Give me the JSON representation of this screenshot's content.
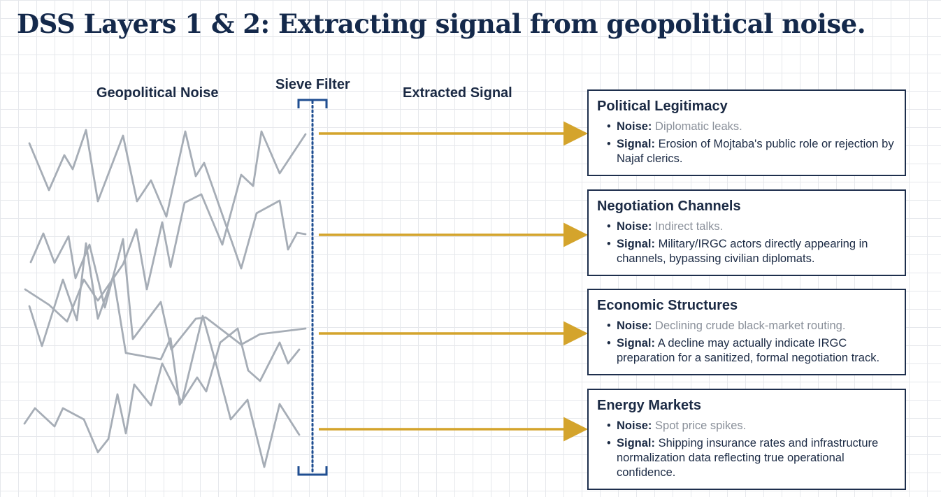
{
  "title": "DSS Layers 1 & 2: Extracting signal from geopolitical noise.",
  "labels": {
    "noise": "Geopolitical Noise",
    "filter": "Sieve Filter",
    "signal": "Extracted Signal"
  },
  "colors": {
    "title": "#14294b",
    "noise_line": "#a6adb6",
    "arrow": "#d4a42c",
    "filter": "#1f4e91",
    "card_border": "#1e2f4d"
  },
  "cards": [
    {
      "title": "Political Legitimacy",
      "noise_label": "Noise:",
      "noise": "Diplomatic leaks.",
      "signal_label": "Signal:",
      "signal": "Erosion of Mojtaba's public role or rejection by Najaf clerics."
    },
    {
      "title": "Negotiation Channels",
      "noise_label": "Noise:",
      "noise": "Indirect talks.",
      "signal_label": "Signal:",
      "signal": "Military/IRGC actors directly appearing in channels, bypassing civilian diplomats."
    },
    {
      "title": "Economic Structures",
      "noise_label": "Noise:",
      "noise": "Declining crude black-market routing.",
      "signal_label": "Signal:",
      "signal": "A decline may actually indicate IRGC preparation for a sanitized, formal negotiation track."
    },
    {
      "title": "Energy Markets",
      "noise_label": "Noise:",
      "noise": "Spot price spikes.",
      "signal_label": "Signal:",
      "signal": "Shipping insurance rates and infrastructure normalization data reflecting true operational confidence."
    }
  ]
}
